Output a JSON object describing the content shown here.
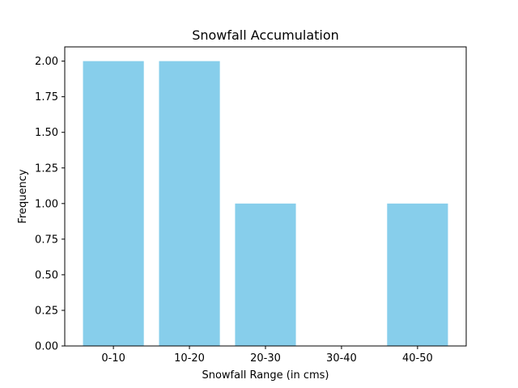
{
  "chart_data": {
    "type": "bar",
    "title": "Snowfall Accumulation",
    "xlabel": "Snowfall Range (in cms)",
    "ylabel": "Frequency",
    "categories": [
      "0-10",
      "10-20",
      "20-30",
      "30-40",
      "40-50"
    ],
    "values": [
      2,
      2,
      1,
      0,
      1
    ],
    "ylim": [
      0,
      2.1
    ],
    "yticks": [
      "0.00",
      "0.25",
      "0.50",
      "0.75",
      "1.00",
      "1.25",
      "1.50",
      "1.75",
      "2.00"
    ],
    "bar_color": "#87ceeb",
    "grid": false,
    "legend": "none"
  }
}
